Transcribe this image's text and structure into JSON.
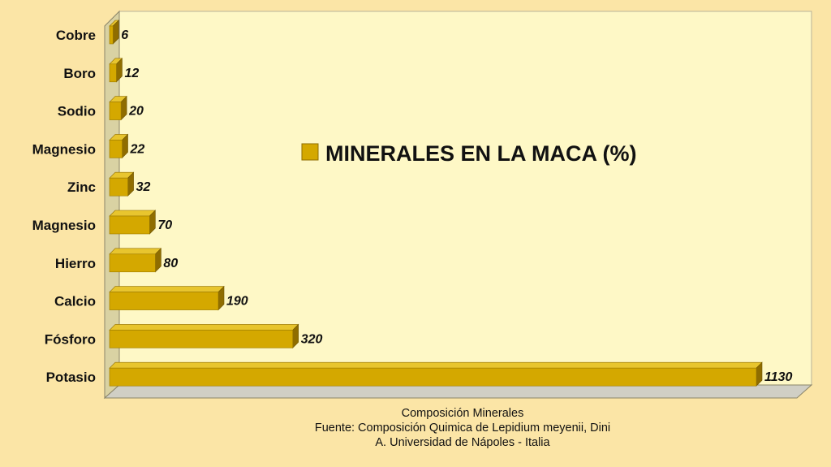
{
  "chart_data": {
    "type": "bar",
    "orientation": "horizontal",
    "categories": [
      "Cobre",
      "Boro",
      "Sodio",
      "Magnesio",
      "Zinc",
      "Magnesio",
      "Hierro",
      "Calcio",
      "Fósforo",
      "Potasio"
    ],
    "series": [
      {
        "name": "MINERALES EN LA MACA (%)",
        "values": [
          6,
          12,
          20,
          22,
          32,
          70,
          80,
          190,
          320,
          1130
        ],
        "color": "#d4a800"
      }
    ],
    "xlim": [
      0,
      1130
    ],
    "grid": false,
    "legend_placement": "center",
    "data_labels": true
  },
  "caption": {
    "line1": "Composición Minerales",
    "line2": "Fuente: Composición Quimica de Lepidium meyenii, Dini",
    "line3": "A. Universidad de Nápoles - Italia"
  },
  "colors": {
    "background": "#fbe5a6",
    "plot_area": "#fef8c6",
    "bar_face": "#d4a800",
    "bar_top": "#e8c52e",
    "bar_side": "#8f6d00"
  }
}
